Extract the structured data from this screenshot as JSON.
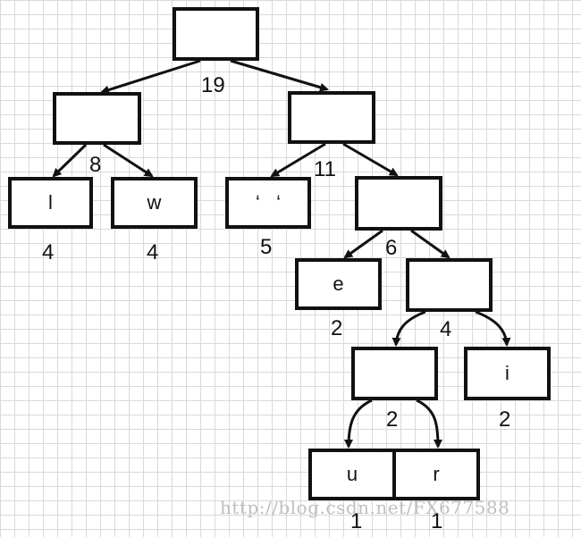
{
  "tree": {
    "nodes": {
      "root": {
        "label": "",
        "weight": "19"
      },
      "n8": {
        "label": "",
        "weight": "8"
      },
      "n11": {
        "label": "",
        "weight": "11"
      },
      "leaf_l": {
        "label": "l",
        "weight": "4"
      },
      "leaf_w": {
        "label": "w",
        "weight": "4"
      },
      "leaf_space": {
        "label": "‘   ‘",
        "weight": "5"
      },
      "n6": {
        "label": "",
        "weight": "6"
      },
      "leaf_e": {
        "label": "e",
        "weight": "2"
      },
      "n4": {
        "label": "",
        "weight": "4"
      },
      "n2": {
        "label": "",
        "weight": "2"
      },
      "leaf_i": {
        "label": "i",
        "weight": "2"
      },
      "leaf_u": {
        "label": "u",
        "weight": "1"
      },
      "leaf_r": {
        "label": "r",
        "weight": "1"
      }
    }
  },
  "watermark": "http://blog.csdn.net/FX677588",
  "colors": {
    "stroke": "#111111",
    "grid": "#d9d9d9",
    "background": "#ffffff"
  }
}
